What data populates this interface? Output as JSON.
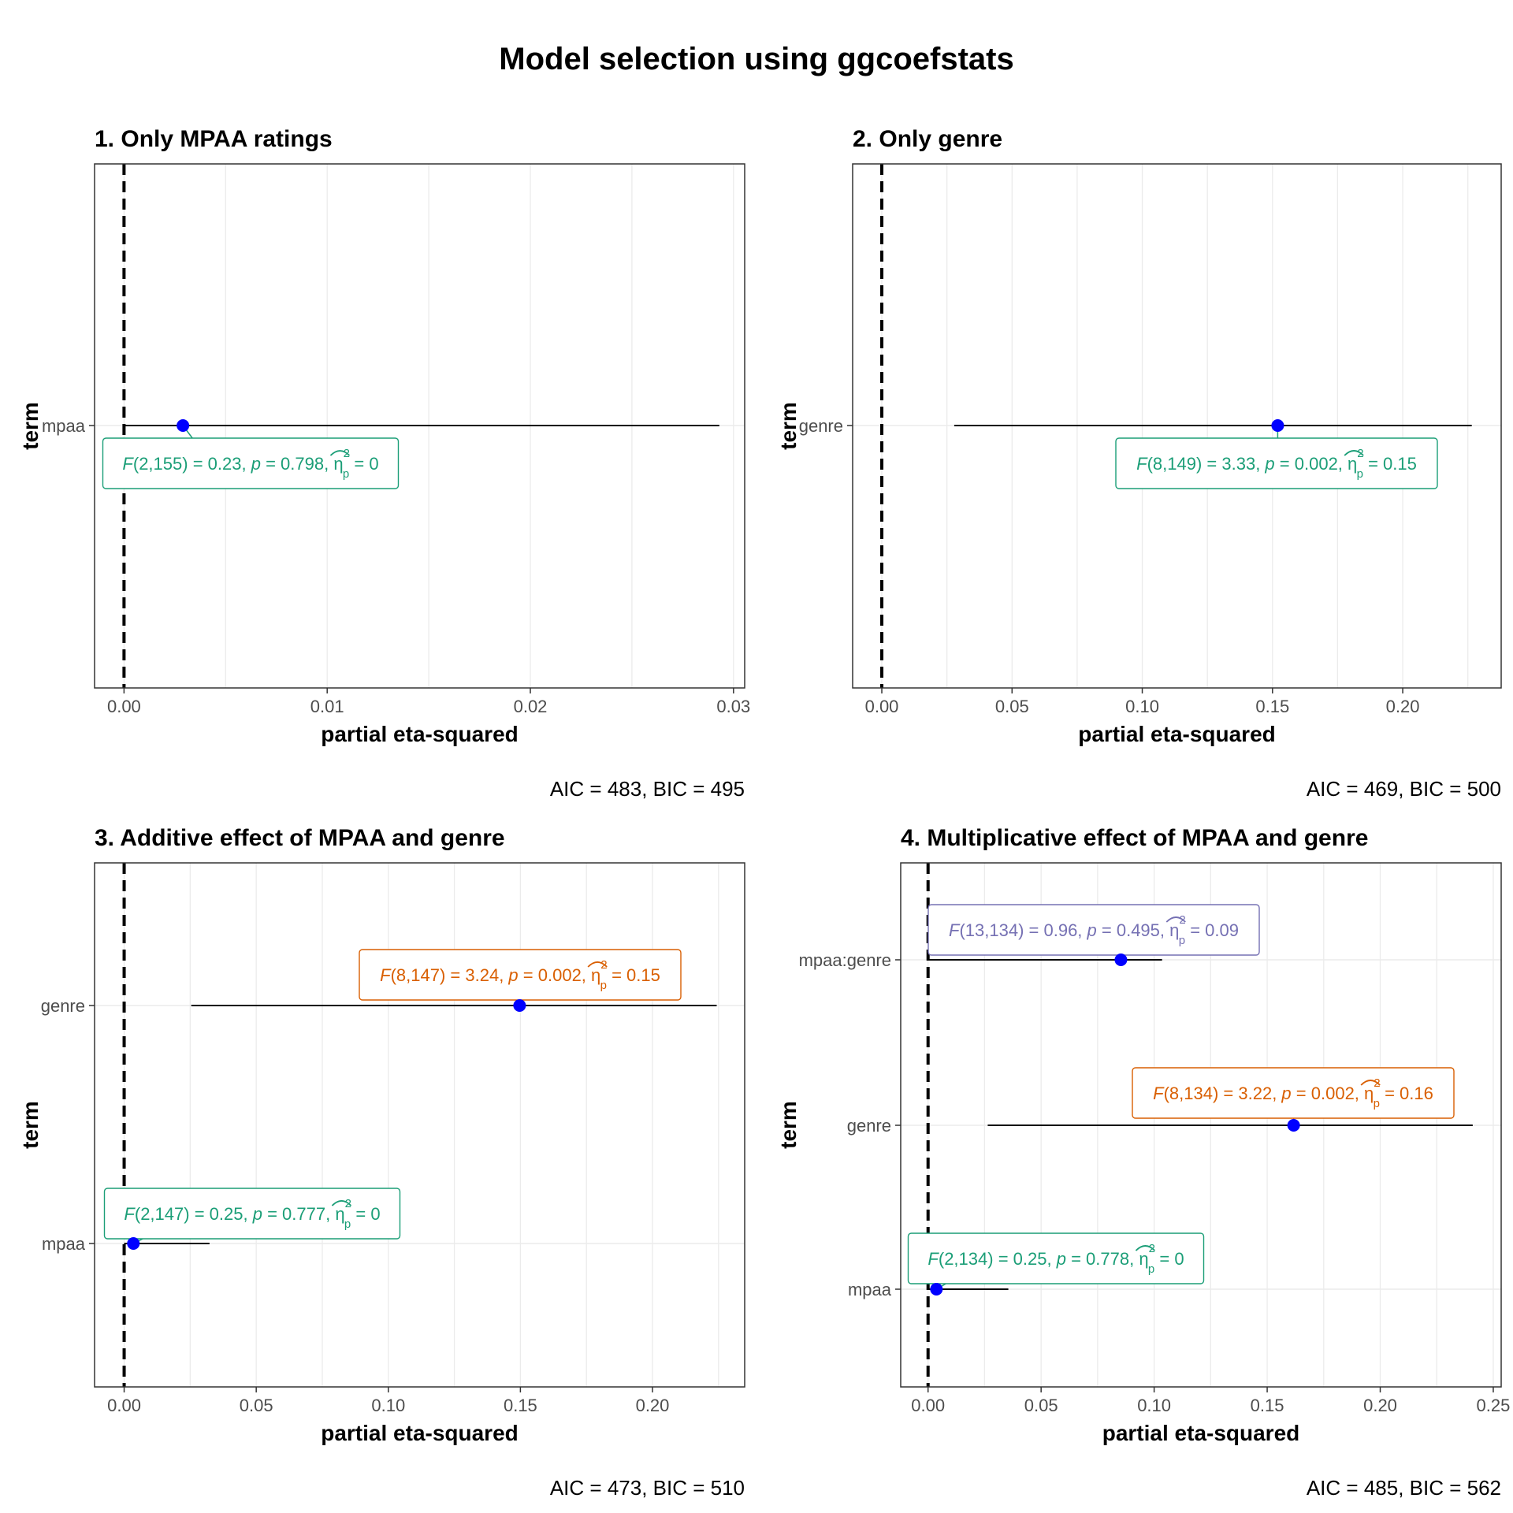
{
  "title": "Model selection using ggcoefstats",
  "colors": {
    "point": "#0000ff",
    "errorbar": "#000000",
    "zero_line": "#000000",
    "grid": "#ebebeb",
    "panel_border": "#333333",
    "label_green": "#1b9e77",
    "label_orange": "#d95f02",
    "label_purple": "#7570b3"
  },
  "chart_data": [
    {
      "type": "scatter",
      "panel_title": "1. Only MPAA ratings",
      "xlabel": "partial eta-squared",
      "ylabel": "term",
      "xlim": [
        -0.00145,
        0.03055
      ],
      "xticks": [
        0.0,
        0.01,
        0.02,
        0.03
      ],
      "xtick_labels": [
        "0.00",
        "0.01",
        "0.02",
        "0.03"
      ],
      "reference_line_x": 0,
      "grid": true,
      "terms": [
        {
          "term": "mpaa",
          "estimate": 0.0029,
          "conf_low": 0.0,
          "conf_high": 0.0293,
          "F": "2,155",
          "F_value": "0.23",
          "p": "0.798",
          "eta": "0",
          "label_color": "green"
        }
      ],
      "caption": "AIC = 483, BIC = 495"
    },
    {
      "type": "scatter",
      "panel_title": "2. Only genre",
      "xlabel": "partial eta-squared",
      "ylabel": "term",
      "xlim": [
        -0.0112,
        0.2378
      ],
      "xticks": [
        0.0,
        0.05,
        0.1,
        0.15,
        0.2
      ],
      "xtick_labels": [
        "0.00",
        "0.05",
        "0.10",
        "0.15",
        "0.20"
      ],
      "reference_line_x": 0,
      "grid": true,
      "terms": [
        {
          "term": "genre",
          "estimate": 0.152,
          "conf_low": 0.0278,
          "conf_high": 0.2265,
          "F": "8,149",
          "F_value": "3.33",
          "p": "0.002",
          "eta": "0.15",
          "label_color": "green"
        }
      ],
      "caption": "AIC = 469, BIC = 500"
    },
    {
      "type": "scatter",
      "panel_title": "3. Additive effect of MPAA and genre",
      "xlabel": "partial eta-squared",
      "ylabel": "term",
      "xlim": [
        -0.0112,
        0.2349
      ],
      "xticks": [
        0.0,
        0.05,
        0.1,
        0.15,
        0.2
      ],
      "xtick_labels": [
        "0.00",
        "0.05",
        "0.10",
        "0.15",
        "0.20"
      ],
      "reference_line_x": 0,
      "grid": true,
      "terms": [
        {
          "term": "mpaa",
          "estimate": 0.0035,
          "conf_low": 0.0,
          "conf_high": 0.0323,
          "F": "2,147",
          "F_value": "0.25",
          "p": "0.777",
          "eta": "0",
          "label_color": "green"
        },
        {
          "term": "genre",
          "estimate": 0.1497,
          "conf_low": 0.0254,
          "conf_high": 0.2243,
          "F": "8,147",
          "F_value": "3.24",
          "p": "0.002",
          "eta": "0.15",
          "label_color": "orange"
        }
      ],
      "caption": "AIC = 473, BIC = 510"
    },
    {
      "type": "scatter",
      "panel_title": "4. Multiplicative effect of MPAA and genre",
      "xlabel": "partial eta-squared",
      "ylabel": "term",
      "xlim": [
        -0.0121,
        0.2535
      ],
      "xticks": [
        0.0,
        0.05,
        0.1,
        0.15,
        0.2,
        0.25
      ],
      "xtick_labels": [
        "0.00",
        "0.05",
        "0.10",
        "0.15",
        "0.20",
        "0.25"
      ],
      "reference_line_x": 0,
      "grid": true,
      "terms": [
        {
          "term": "mpaa",
          "estimate": 0.0037,
          "conf_low": 0.0,
          "conf_high": 0.0355,
          "F": "2,134",
          "F_value": "0.25",
          "p": "0.778",
          "eta": "0",
          "label_color": "green"
        },
        {
          "term": "genre",
          "estimate": 0.1617,
          "conf_low": 0.0264,
          "conf_high": 0.2409,
          "F": "8,134",
          "F_value": "3.22",
          "p": "0.002",
          "eta": "0.16",
          "label_color": "orange"
        },
        {
          "term": "mpaa:genre",
          "estimate": 0.0853,
          "conf_low": 0.0,
          "conf_high": 0.1035,
          "F": "13,134",
          "F_value": "0.96",
          "p": "0.495",
          "eta": "0.09",
          "label_color": "purple"
        }
      ],
      "caption": "AIC = 485, BIC = 562"
    }
  ]
}
